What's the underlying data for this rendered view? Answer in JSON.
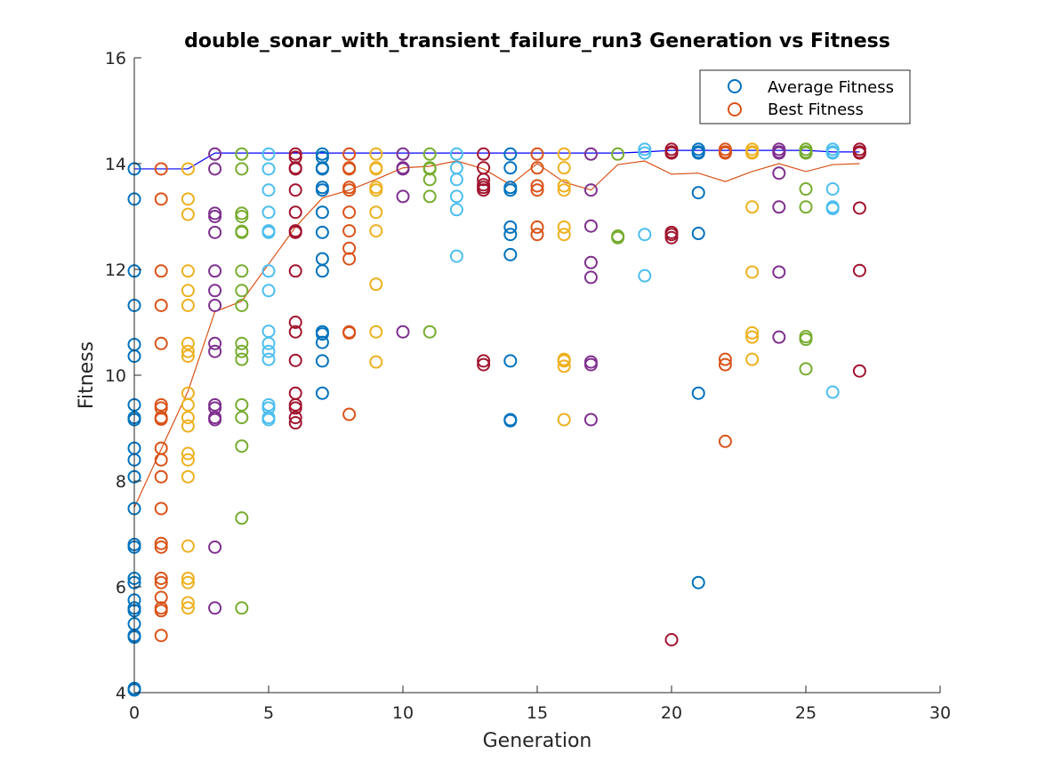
{
  "chart_data": {
    "type": "scatter",
    "title": "double_sonar_with_transient_failure_run3 Generation vs Fitness",
    "xlabel": "Generation",
    "ylabel": "Fitness",
    "xlim": [
      0,
      30
    ],
    "ylim": [
      4,
      16
    ],
    "xticks": [
      "0",
      "5",
      "10",
      "15",
      "20",
      "25",
      "30"
    ],
    "yticks": [
      "4",
      "6",
      "8",
      "10",
      "12",
      "14",
      "16"
    ],
    "grid": false,
    "legend_position": "top-right",
    "legend": [
      {
        "label": "Average Fitness",
        "color": "#0072BD"
      },
      {
        "label": "Best Fitness",
        "color": "#D95319"
      }
    ],
    "generation_colors": [
      "#0072BD",
      "#D95319",
      "#EDB120",
      "#7E2F8E",
      "#77AC30",
      "#4DBEEE",
      "#A2142F"
    ],
    "population": [
      {
        "generation": 0,
        "values": [
          13.9,
          13.33,
          11.97,
          11.32,
          10.58,
          10.36,
          9.44,
          9.2,
          9.16,
          8.62,
          8.4,
          8.08,
          7.48,
          6.8,
          6.75,
          6.16,
          6.08,
          5.75,
          5.6,
          5.55,
          5.3,
          5.08,
          5.05,
          4.08,
          4.05
        ]
      },
      {
        "generation": 1,
        "values": [
          13.9,
          13.33,
          11.97,
          11.32,
          10.6,
          9.44,
          9.38,
          9.2,
          9.17,
          8.62,
          8.4,
          8.08,
          7.48,
          6.82,
          6.75,
          6.16,
          6.08,
          5.8,
          5.6,
          5.55,
          5.08
        ]
      },
      {
        "generation": 2,
        "values": [
          13.9,
          13.33,
          13.04,
          11.97,
          11.6,
          11.32,
          10.6,
          10.45,
          10.36,
          9.66,
          9.44,
          9.2,
          9.04,
          8.52,
          8.4,
          8.08,
          6.77,
          6.16,
          6.08,
          5.7,
          5.6
        ]
      },
      {
        "generation": 3,
        "values": [
          14.18,
          13.9,
          13.06,
          13.0,
          12.7,
          11.97,
          11.6,
          11.32,
          10.6,
          10.45,
          9.44,
          9.38,
          9.2,
          9.16,
          6.75,
          5.6
        ]
      },
      {
        "generation": 4,
        "values": [
          14.18,
          13.9,
          13.06,
          13.0,
          12.72,
          12.7,
          11.97,
          11.6,
          11.32,
          10.6,
          10.45,
          10.3,
          9.44,
          9.2,
          8.66,
          7.3,
          5.6
        ]
      },
      {
        "generation": 5,
        "values": [
          14.18,
          13.9,
          13.5,
          13.08,
          12.73,
          12.7,
          11.97,
          11.6,
          10.83,
          10.6,
          10.45,
          10.3,
          9.44,
          9.38,
          9.2,
          9.16
        ]
      },
      {
        "generation": 6,
        "values": [
          14.18,
          14.12,
          13.92,
          13.9,
          13.5,
          13.08,
          12.73,
          12.7,
          11.97,
          11.0,
          10.82,
          10.28,
          9.66,
          9.44,
          9.38,
          9.2,
          9.1
        ]
      },
      {
        "generation": 7,
        "values": [
          14.18,
          14.12,
          13.92,
          13.9,
          13.55,
          13.5,
          13.08,
          12.7,
          12.2,
          11.97,
          10.82,
          10.78,
          10.62,
          10.27,
          9.66
        ]
      },
      {
        "generation": 8,
        "values": [
          14.18,
          13.92,
          13.9,
          13.55,
          13.5,
          13.08,
          12.73,
          12.4,
          12.2,
          10.82,
          10.8,
          9.26
        ]
      },
      {
        "generation": 9,
        "values": [
          14.18,
          13.92,
          13.9,
          13.55,
          13.5,
          13.08,
          12.73,
          11.72,
          10.82,
          10.25
        ]
      },
      {
        "generation": 10,
        "values": [
          14.18,
          13.92,
          13.9,
          13.38,
          10.82
        ]
      },
      {
        "generation": 11,
        "values": [
          14.18,
          13.92,
          13.9,
          13.7,
          13.38,
          10.82
        ]
      },
      {
        "generation": 12,
        "values": [
          14.18,
          13.92,
          13.7,
          13.38,
          13.13,
          12.25
        ]
      },
      {
        "generation": 13,
        "values": [
          14.18,
          13.92,
          13.7,
          13.6,
          13.55,
          13.5,
          10.27,
          10.2
        ]
      },
      {
        "generation": 14,
        "values": [
          14.18,
          13.92,
          13.55,
          13.5,
          12.8,
          12.66,
          12.28,
          10.27,
          9.16,
          9.14
        ]
      },
      {
        "generation": 15,
        "values": [
          14.18,
          13.92,
          13.58,
          13.5,
          12.8,
          12.66
        ]
      },
      {
        "generation": 16,
        "values": [
          14.18,
          13.92,
          13.58,
          13.5,
          12.8,
          12.66,
          10.3,
          10.27,
          10.17,
          9.16
        ]
      },
      {
        "generation": 17,
        "values": [
          14.18,
          13.5,
          12.82,
          12.13,
          11.85,
          10.25,
          10.2,
          9.16
        ]
      },
      {
        "generation": 18,
        "values": [
          14.18,
          12.63,
          12.6
        ]
      },
      {
        "generation": 19,
        "values": [
          14.27,
          14.2,
          12.66,
          11.88
        ]
      },
      {
        "generation": 20,
        "values": [
          14.27,
          14.22,
          14.2,
          12.7,
          12.66,
          12.6,
          5.0
        ]
      },
      {
        "generation": 21,
        "values": [
          14.27,
          14.22,
          14.2,
          13.45,
          12.68,
          9.66,
          6.08
        ]
      },
      {
        "generation": 22,
        "values": [
          14.27,
          14.22,
          14.2,
          10.3,
          10.2,
          8.75
        ]
      },
      {
        "generation": 23,
        "values": [
          14.27,
          14.22,
          14.2,
          13.18,
          11.95,
          10.8,
          10.72,
          10.3
        ]
      },
      {
        "generation": 24,
        "values": [
          14.27,
          14.22,
          14.2,
          13.82,
          13.18,
          11.95,
          10.72
        ]
      },
      {
        "generation": 25,
        "values": [
          14.27,
          14.22,
          14.2,
          13.52,
          13.18,
          10.73,
          10.68,
          10.12
        ]
      },
      {
        "generation": 26,
        "values": [
          14.27,
          14.22,
          14.2,
          13.52,
          13.18,
          13.15,
          9.68
        ]
      },
      {
        "generation": 27,
        "values": [
          14.27,
          14.22,
          14.2,
          13.16,
          11.98,
          10.08
        ]
      }
    ],
    "series": [
      {
        "name": "Average Fitness",
        "color": "#D95319",
        "x": [
          0,
          1,
          2,
          3,
          4,
          5,
          6,
          7,
          8,
          9,
          10,
          11,
          12,
          13,
          14,
          15,
          16,
          17,
          18,
          19,
          20,
          21,
          22,
          23,
          24,
          25,
          26,
          27
        ],
        "values": [
          7.5,
          8.6,
          9.7,
          11.2,
          11.4,
          12.1,
          12.8,
          13.35,
          13.5,
          13.7,
          13.92,
          13.95,
          14.05,
          13.9,
          13.6,
          14.0,
          13.65,
          13.5,
          13.98,
          14.05,
          13.8,
          13.82,
          13.66,
          13.85,
          14.0,
          13.85,
          13.98,
          14.0
        ]
      },
      {
        "name": "Best Fitness",
        "color": "#0000FF",
        "x": [
          0,
          1,
          2,
          3,
          4,
          5,
          6,
          7,
          8,
          9,
          10,
          11,
          12,
          13,
          14,
          15,
          16,
          17,
          18,
          19,
          20,
          21,
          22,
          23,
          24,
          25,
          26,
          27
        ],
        "values": [
          13.9,
          13.9,
          13.9,
          14.2,
          14.2,
          14.2,
          14.2,
          14.2,
          14.2,
          14.2,
          14.2,
          14.2,
          14.2,
          14.2,
          14.2,
          14.2,
          14.2,
          14.2,
          14.2,
          14.22,
          14.25,
          14.25,
          14.25,
          14.25,
          14.25,
          14.25,
          14.22,
          14.22
        ]
      }
    ]
  }
}
